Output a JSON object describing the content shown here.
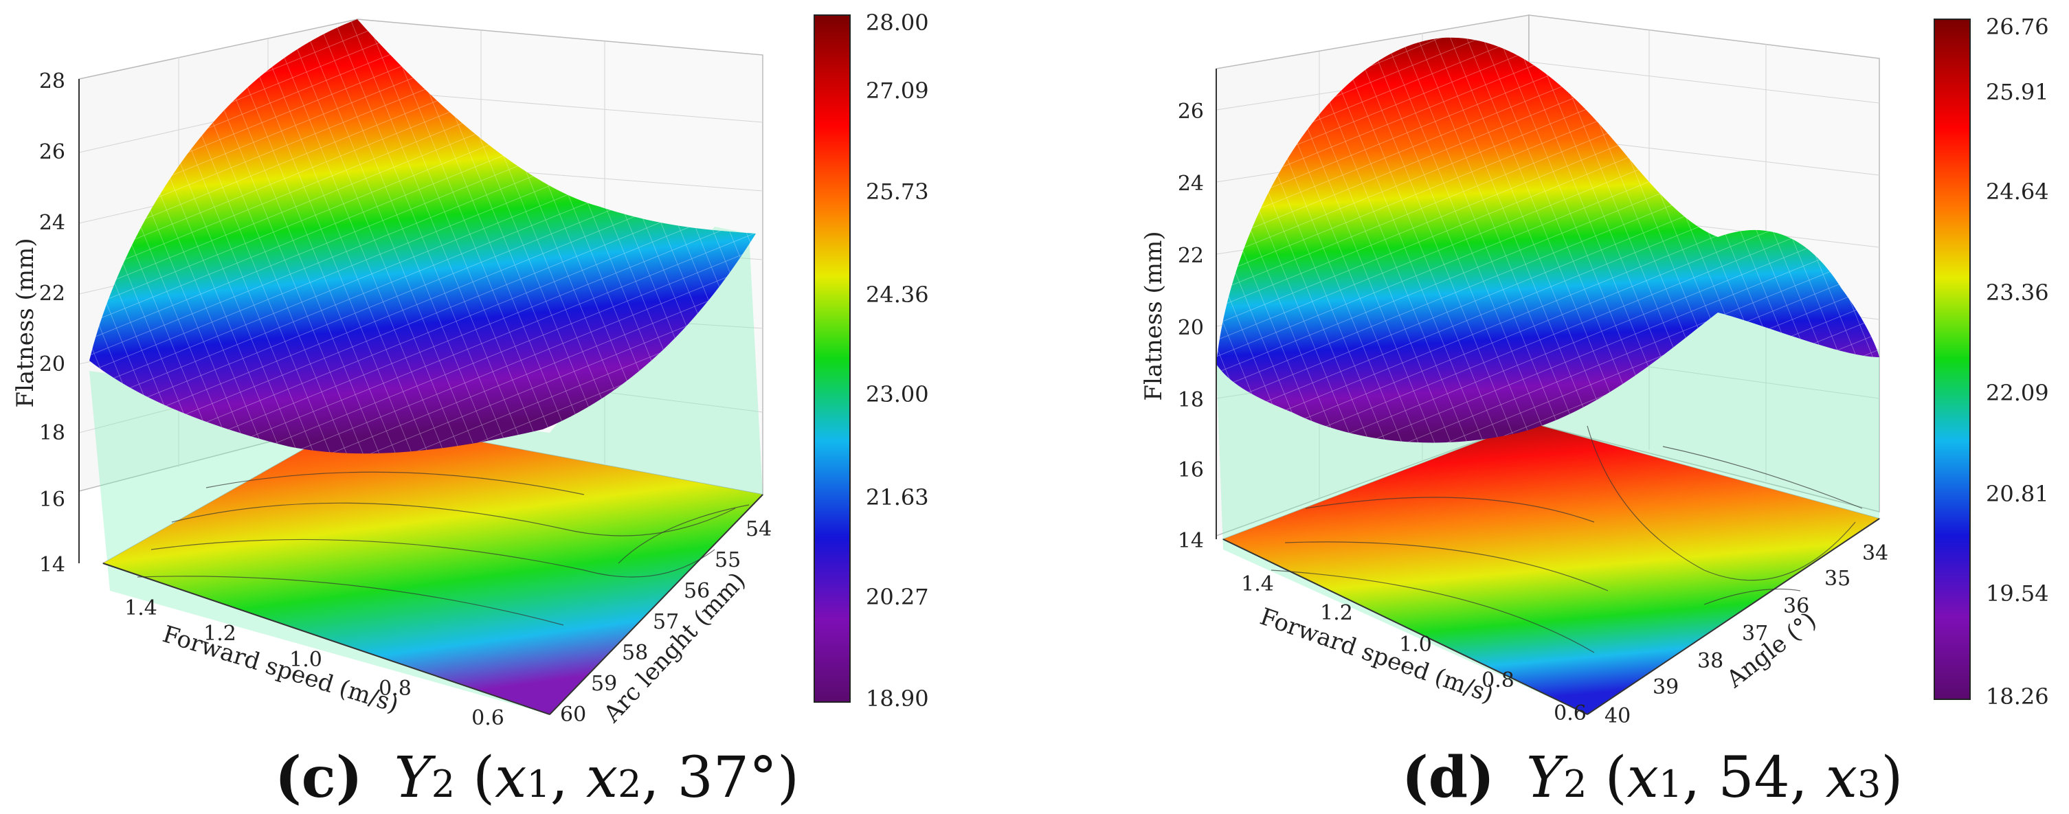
{
  "colormap": [
    "#5a0a6e",
    "#7d0fb5",
    "#1414d8",
    "#12b8ee",
    "#0fd814",
    "#e6ec00",
    "#ff7a00",
    "#ff0000",
    "#7a0000"
  ],
  "chart_data": [
    {
      "type": "surface3d",
      "caption": {
        "label": "(c)",
        "text": "Y2 (x1, x2, 37°)",
        "y": "Y",
        "y_sub": "2",
        "open": " (",
        "x1": "x",
        "x1_sub": "1",
        "mid": ", ",
        "x2": "x",
        "x2_sub": "2",
        "rest": ", 37°)"
      },
      "zlabel": "Flatness (mm)",
      "xlabel": "Forward speed (m/s)",
      "ylabel": "Arc lenght (mm)",
      "zticks": [
        "28",
        "26",
        "24",
        "22",
        "20",
        "18",
        "16",
        "14"
      ],
      "xticks": [
        "1.4",
        "1.2",
        "1.0",
        "0.8",
        "0.6"
      ],
      "yticks": [
        "54",
        "55",
        "56",
        "57",
        "58",
        "59",
        "60"
      ],
      "colorbar_ticks": [
        "28.00",
        "27.09",
        "25.73",
        "24.36",
        "23.00",
        "21.63",
        "20.27",
        "18.90"
      ]
    },
    {
      "type": "surface3d",
      "caption": {
        "label": "(d)",
        "text": "Y2 (x1, 54, x3)",
        "y": "Y",
        "y_sub": "2",
        "open": " (",
        "x1": "x",
        "x1_sub": "1",
        "mid": ", 54, ",
        "x2": "x",
        "x2_sub": "3",
        "rest": ")"
      },
      "zlabel": "Flatness (mm)",
      "xlabel": "Forward speed (m/s)",
      "ylabel": "Angle (°)",
      "zticks": [
        "26",
        "24",
        "22",
        "20",
        "18",
        "16",
        "14"
      ],
      "xticks": [
        "1.4",
        "1.2",
        "1.0",
        "0.8",
        "0.6"
      ],
      "yticks": [
        "34",
        "35",
        "36",
        "37",
        "38",
        "39",
        "40"
      ],
      "colorbar_ticks": [
        "26.76",
        "25.91",
        "24.64",
        "23.36",
        "22.09",
        "20.81",
        "19.54",
        "18.26"
      ]
    }
  ]
}
